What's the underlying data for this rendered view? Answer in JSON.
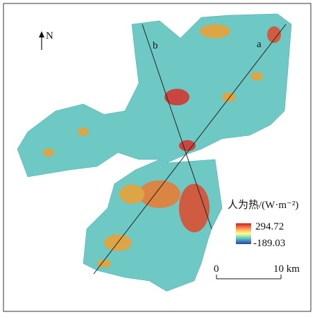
{
  "north": "N",
  "profiles": {
    "a": "a",
    "b": "b"
  },
  "legend": {
    "title": "人为热/(W·m⁻²)",
    "max": 294.72,
    "min": -189.03
  },
  "scale_bar": {
    "start": "0",
    "end": "10 km"
  }
}
